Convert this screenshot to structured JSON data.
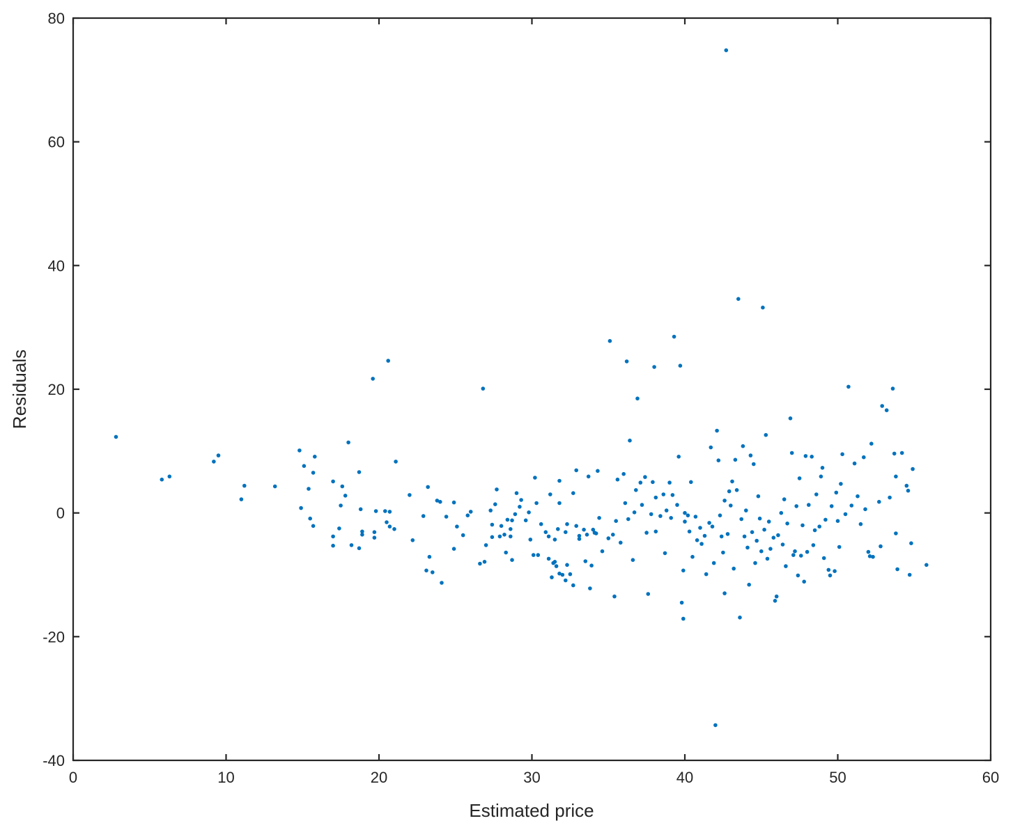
{
  "chart_data": {
    "type": "scatter",
    "title": "",
    "xlabel": "Estimated price",
    "ylabel": "Residuals",
    "xlim": [
      0,
      60
    ],
    "ylim": [
      -40,
      80
    ],
    "xticks": [
      0,
      10,
      20,
      30,
      40,
      50,
      60
    ],
    "yticks": [
      -40,
      -20,
      0,
      20,
      40,
      60,
      80
    ],
    "grid": false,
    "marker_color": "#0072BD",
    "series": [
      {
        "points": [
          [
            2.8,
            12.3
          ],
          [
            5.8,
            5.4
          ],
          [
            6.3,
            5.9
          ],
          [
            9.2,
            8.3
          ],
          [
            9.5,
            9.3
          ],
          [
            11.0,
            2.2
          ],
          [
            11.2,
            4.4
          ],
          [
            13.2,
            4.3
          ],
          [
            14.8,
            10.1
          ],
          [
            14.9,
            0.8
          ],
          [
            15.1,
            7.6
          ],
          [
            15.4,
            3.9
          ],
          [
            15.5,
            -0.9
          ],
          [
            15.7,
            -2.1
          ],
          [
            15.7,
            6.5
          ],
          [
            15.8,
            9.1
          ],
          [
            17.0,
            5.1
          ],
          [
            17.0,
            -3.8
          ],
          [
            17.0,
            -5.3
          ],
          [
            17.4,
            -2.5
          ],
          [
            17.5,
            1.2
          ],
          [
            17.6,
            4.3
          ],
          [
            17.8,
            2.8
          ],
          [
            18.0,
            11.4
          ],
          [
            18.2,
            -5.2
          ],
          [
            18.7,
            -5.7
          ],
          [
            18.7,
            6.6
          ],
          [
            18.8,
            0.6
          ],
          [
            18.9,
            -3.0
          ],
          [
            18.9,
            -3.5
          ],
          [
            19.6,
            21.7
          ],
          [
            19.7,
            -3.1
          ],
          [
            19.7,
            -4.0
          ],
          [
            19.8,
            0.3
          ],
          [
            20.4,
            0.3
          ],
          [
            20.6,
            24.6
          ],
          [
            20.5,
            -1.5
          ],
          [
            20.7,
            0.2
          ],
          [
            20.7,
            -2.2
          ],
          [
            21.0,
            -2.6
          ],
          [
            21.1,
            8.3
          ],
          [
            22.0,
            2.9
          ],
          [
            22.2,
            -4.4
          ],
          [
            22.9,
            -0.5
          ],
          [
            23.1,
            -9.3
          ],
          [
            23.2,
            4.2
          ],
          [
            23.3,
            -7.1
          ],
          [
            23.5,
            -9.6
          ],
          [
            23.8,
            2.0
          ],
          [
            24.0,
            1.8
          ],
          [
            24.1,
            -11.3
          ],
          [
            24.4,
            -0.6
          ],
          [
            24.9,
            1.7
          ],
          [
            24.9,
            -5.8
          ],
          [
            25.1,
            -2.2
          ],
          [
            25.5,
            -3.6
          ],
          [
            25.8,
            -0.4
          ],
          [
            26.0,
            0.2
          ],
          [
            26.6,
            -8.2
          ],
          [
            26.8,
            20.1
          ],
          [
            26.9,
            -7.9
          ],
          [
            27.0,
            -5.2
          ],
          [
            27.3,
            0.4
          ],
          [
            27.4,
            -1.9
          ],
          [
            27.4,
            -3.9
          ],
          [
            27.6,
            1.4
          ],
          [
            27.7,
            3.8
          ],
          [
            27.9,
            -3.8
          ],
          [
            28.0,
            -2.1
          ],
          [
            28.2,
            -3.5
          ],
          [
            28.3,
            -6.4
          ],
          [
            28.4,
            -1.1
          ],
          [
            28.6,
            -2.6
          ],
          [
            28.6,
            -3.8
          ],
          [
            28.7,
            -1.2
          ],
          [
            28.7,
            -7.6
          ],
          [
            28.9,
            -0.2
          ],
          [
            29.0,
            3.2
          ],
          [
            29.2,
            1.0
          ],
          [
            29.3,
            2.1
          ],
          [
            29.6,
            -1.2
          ],
          [
            29.8,
            0.1
          ],
          [
            29.9,
            -4.3
          ],
          [
            30.1,
            -6.8
          ],
          [
            30.2,
            5.7
          ],
          [
            30.3,
            1.6
          ],
          [
            30.4,
            -6.8
          ],
          [
            30.6,
            -1.8
          ],
          [
            30.9,
            -3.1
          ],
          [
            31.1,
            -3.8
          ],
          [
            31.1,
            -7.4
          ],
          [
            31.2,
            3.0
          ],
          [
            31.3,
            -10.4
          ],
          [
            31.4,
            -8.1
          ],
          [
            31.5,
            -4.3
          ],
          [
            31.5,
            -7.9
          ],
          [
            31.6,
            -8.6
          ],
          [
            31.7,
            -2.6
          ],
          [
            31.8,
            1.6
          ],
          [
            31.8,
            -9.8
          ],
          [
            31.8,
            5.2
          ],
          [
            32.0,
            -10.0
          ],
          [
            32.2,
            -3.1
          ],
          [
            32.2,
            -10.9
          ],
          [
            32.3,
            -1.8
          ],
          [
            32.3,
            -8.4
          ],
          [
            32.5,
            -9.9
          ],
          [
            32.7,
            3.2
          ],
          [
            32.7,
            -11.7
          ],
          [
            32.9,
            -2.1
          ],
          [
            32.9,
            6.9
          ],
          [
            33.1,
            -4.2
          ],
          [
            33.1,
            -3.7
          ],
          [
            33.4,
            -2.7
          ],
          [
            33.5,
            -7.8
          ],
          [
            33.6,
            -3.5
          ],
          [
            33.7,
            5.9
          ],
          [
            33.8,
            -12.2
          ],
          [
            33.9,
            -8.5
          ],
          [
            34.0,
            -2.7
          ],
          [
            34.1,
            -3.2
          ],
          [
            34.2,
            -3.3
          ],
          [
            34.3,
            6.8
          ],
          [
            34.4,
            -0.8
          ],
          [
            34.6,
            -6.2
          ],
          [
            35.0,
            -4.1
          ],
          [
            35.1,
            27.8
          ],
          [
            35.3,
            -3.5
          ],
          [
            35.4,
            -13.5
          ],
          [
            35.5,
            -1.3
          ],
          [
            35.6,
            5.4
          ],
          [
            35.8,
            -4.8
          ],
          [
            36.0,
            6.3
          ],
          [
            36.1,
            1.6
          ],
          [
            36.2,
            24.5
          ],
          [
            36.3,
            -1.0
          ],
          [
            36.4,
            11.7
          ],
          [
            36.6,
            -7.6
          ],
          [
            36.7,
            0.1
          ],
          [
            36.8,
            3.7
          ],
          [
            36.9,
            18.5
          ],
          [
            37.1,
            4.9
          ],
          [
            37.2,
            1.3
          ],
          [
            37.4,
            5.8
          ],
          [
            37.5,
            -3.2
          ],
          [
            37.6,
            -13.1
          ],
          [
            37.8,
            -0.2
          ],
          [
            37.9,
            5.0
          ],
          [
            38.0,
            23.6
          ],
          [
            38.1,
            -3.0
          ],
          [
            38.1,
            2.5
          ],
          [
            38.4,
            -0.5
          ],
          [
            38.6,
            3.0
          ],
          [
            38.7,
            -6.5
          ],
          [
            38.8,
            0.4
          ],
          [
            39.0,
            4.9
          ],
          [
            39.1,
            -0.8
          ],
          [
            39.2,
            2.9
          ],
          [
            39.3,
            28.5
          ],
          [
            39.5,
            1.3
          ],
          [
            39.6,
            9.1
          ],
          [
            39.7,
            23.8
          ],
          [
            39.8,
            -14.5
          ],
          [
            39.9,
            -17.1
          ],
          [
            39.9,
            -9.3
          ],
          [
            40.0,
            -1.4
          ],
          [
            40.0,
            0.0
          ],
          [
            40.2,
            -0.4
          ],
          [
            40.3,
            -3.0
          ],
          [
            40.4,
            5.0
          ],
          [
            40.5,
            -7.1
          ],
          [
            40.7,
            -0.6
          ],
          [
            40.8,
            -4.4
          ],
          [
            41.0,
            -2.4
          ],
          [
            41.1,
            -5.0
          ],
          [
            41.3,
            -3.7
          ],
          [
            41.4,
            -9.9
          ],
          [
            41.6,
            -1.6
          ],
          [
            41.7,
            10.6
          ],
          [
            41.8,
            -2.2
          ],
          [
            41.9,
            -8.1
          ],
          [
            42.0,
            -34.3
          ],
          [
            42.1,
            13.3
          ],
          [
            42.2,
            8.5
          ],
          [
            42.3,
            -0.4
          ],
          [
            42.4,
            -3.8
          ],
          [
            42.5,
            -6.4
          ],
          [
            42.6,
            -13.0
          ],
          [
            42.6,
            2.0
          ],
          [
            42.7,
            74.8
          ],
          [
            42.8,
            -3.4
          ],
          [
            42.9,
            3.5
          ],
          [
            43.0,
            1.2
          ],
          [
            43.1,
            5.1
          ],
          [
            43.2,
            -9.0
          ],
          [
            43.3,
            8.6
          ],
          [
            43.4,
            3.7
          ],
          [
            43.5,
            34.6
          ],
          [
            43.6,
            -16.9
          ],
          [
            43.7,
            -1.0
          ],
          [
            43.8,
            10.8
          ],
          [
            43.9,
            -3.8
          ],
          [
            44.0,
            0.4
          ],
          [
            44.1,
            -5.6
          ],
          [
            44.2,
            -11.6
          ],
          [
            44.3,
            9.3
          ],
          [
            44.4,
            -3.1
          ],
          [
            44.5,
            7.9
          ],
          [
            44.6,
            -8.1
          ],
          [
            44.7,
            -4.5
          ],
          [
            44.8,
            2.7
          ],
          [
            44.9,
            -0.9
          ],
          [
            45.0,
            -6.2
          ],
          [
            45.1,
            33.2
          ],
          [
            45.2,
            -2.7
          ],
          [
            45.3,
            12.6
          ],
          [
            45.4,
            -7.4
          ],
          [
            45.5,
            -1.4
          ],
          [
            45.6,
            -5.8
          ],
          [
            45.8,
            -4.0
          ],
          [
            45.9,
            -14.2
          ],
          [
            46.0,
            -13.5
          ],
          [
            46.1,
            -3.6
          ],
          [
            46.3,
            0.0
          ],
          [
            46.4,
            -5.1
          ],
          [
            46.5,
            2.2
          ],
          [
            46.6,
            -8.6
          ],
          [
            46.7,
            -1.7
          ],
          [
            46.9,
            15.3
          ],
          [
            47.0,
            9.7
          ],
          [
            47.1,
            -6.8
          ],
          [
            47.2,
            -6.2
          ],
          [
            47.3,
            1.1
          ],
          [
            47.4,
            -10.1
          ],
          [
            47.5,
            5.6
          ],
          [
            47.6,
            -6.9
          ],
          [
            47.7,
            -2.0
          ],
          [
            47.8,
            -11.1
          ],
          [
            47.9,
            9.2
          ],
          [
            48.0,
            -6.3
          ],
          [
            48.1,
            1.3
          ],
          [
            48.3,
            9.1
          ],
          [
            48.4,
            -5.2
          ],
          [
            48.5,
            -2.8
          ],
          [
            48.6,
            3.0
          ],
          [
            48.8,
            -2.2
          ],
          [
            48.9,
            5.9
          ],
          [
            49.0,
            7.3
          ],
          [
            49.1,
            -7.3
          ],
          [
            49.2,
            -1.1
          ],
          [
            49.4,
            -9.2
          ],
          [
            49.5,
            -10.1
          ],
          [
            49.6,
            1.1
          ],
          [
            49.8,
            -9.4
          ],
          [
            49.9,
            3.3
          ],
          [
            50.0,
            -1.3
          ],
          [
            50.1,
            -5.5
          ],
          [
            50.2,
            4.7
          ],
          [
            50.3,
            9.5
          ],
          [
            50.5,
            -0.2
          ],
          [
            50.7,
            20.4
          ],
          [
            50.9,
            1.2
          ],
          [
            51.1,
            8.0
          ],
          [
            51.3,
            2.7
          ],
          [
            51.5,
            -1.8
          ],
          [
            51.7,
            9.0
          ],
          [
            51.8,
            0.6
          ],
          [
            52.0,
            -6.3
          ],
          [
            52.1,
            -7.0
          ],
          [
            52.2,
            11.2
          ],
          [
            52.3,
            -7.1
          ],
          [
            52.7,
            1.8
          ],
          [
            52.8,
            -5.4
          ],
          [
            52.9,
            17.3
          ],
          [
            53.2,
            16.6
          ],
          [
            53.4,
            2.5
          ],
          [
            53.6,
            20.1
          ],
          [
            53.7,
            9.6
          ],
          [
            53.8,
            -3.3
          ],
          [
            53.8,
            5.9
          ],
          [
            53.9,
            -9.1
          ],
          [
            54.2,
            9.7
          ],
          [
            54.5,
            4.4
          ],
          [
            54.6,
            3.6
          ],
          [
            54.7,
            -10.0
          ],
          [
            54.8,
            -4.9
          ],
          [
            54.9,
            7.1
          ],
          [
            55.8,
            -8.4
          ]
        ]
      }
    ]
  }
}
